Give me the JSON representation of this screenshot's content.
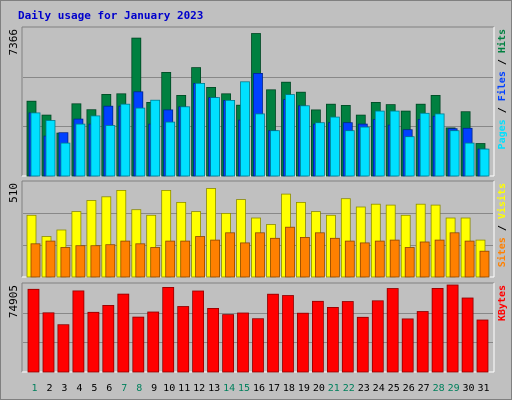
{
  "colors": {
    "background": "#c0c0c0",
    "hits": "#008040",
    "files": "#0040ff",
    "pages": "#00e0ff",
    "visits": "#ffff00",
    "sites": "#ff8000",
    "kbytes": "#ff0000",
    "weekday_label": "#000000",
    "weekend_label": "#00805c",
    "title": "#0000cc"
  },
  "chart_data": {
    "type": "bar",
    "title": "Daily usage for January 2023",
    "categories": [
      "1",
      "2",
      "3",
      "4",
      "5",
      "6",
      "7",
      "8",
      "9",
      "10",
      "11",
      "12",
      "13",
      "14",
      "15",
      "16",
      "17",
      "18",
      "19",
      "20",
      "21",
      "22",
      "23",
      "24",
      "25",
      "26",
      "27",
      "28",
      "29",
      "30",
      "31"
    ],
    "weekend_days": [
      1,
      7,
      8,
      14,
      15,
      21,
      22,
      28,
      29
    ],
    "panels": [
      {
        "name": "hits-files-pages",
        "ymax_label": "7366",
        "ylim": [
          0,
          7366
        ],
        "right_labels": [
          "Pages",
          " / ",
          "Files",
          " / ",
          "Hits"
        ],
        "series": [
          {
            "name": "Hits",
            "values": [
              3750,
              3050,
              2150,
              3620,
              3320,
              4090,
              4120,
              6910,
              3690,
              5190,
              4040,
              5430,
              4440,
              4120,
              3550,
              7140,
              4320,
              4700,
              4200,
              3310,
              3600,
              3540,
              3050,
              3690,
              3580,
              3250,
              3600,
              4040,
              2410,
              3220,
              1630
            ]
          },
          {
            "name": "Files",
            "values": [
              3160,
              2000,
              2170,
              2850,
              2600,
              3500,
              3500,
              4220,
              2600,
              3310,
              3470,
              4640,
              3930,
              3790,
              2800,
              5140,
              2270,
              3830,
              3520,
              2600,
              2670,
              2670,
              2600,
              2830,
              2550,
              2320,
              2830,
              2990,
              2370,
              2390,
              1350
            ]
          },
          {
            "name": "Pages",
            "values": [
              3160,
              2780,
              1650,
              2600,
              3010,
              2530,
              3600,
              3400,
              3800,
              2700,
              3470,
              4640,
              3930,
              3790,
              4720,
              3110,
              2270,
              4080,
              3520,
              2670,
              2950,
              2270,
              2450,
              3250,
              3250,
              1970,
              3140,
              3110,
              2270,
              1650,
              1350
            ]
          }
        ]
      },
      {
        "name": "visits-sites",
        "ymax_label": "510",
        "ylim": [
          0,
          510
        ],
        "right_labels": [
          "Sites",
          " / ",
          "Visits"
        ],
        "series": [
          {
            "name": "Visits",
            "values": [
              335,
              220,
              255,
              355,
              415,
              435,
              470,
              365,
              335,
              470,
              405,
              355,
              480,
              345,
              420,
              320,
              285,
              450,
              405,
              355,
              335,
              425,
              380,
              395,
              390,
              335,
              395,
              390,
              320,
              320,
              200
            ]
          },
          {
            "name": "Sites",
            "values": [
              180,
              195,
              160,
              170,
              170,
              175,
              195,
              180,
              160,
              195,
              195,
              220,
              200,
              240,
              185,
              240,
              210,
              270,
              215,
              240,
              210,
              195,
              185,
              195,
              200,
              160,
              190,
              200,
              240,
              195,
              140
            ]
          }
        ]
      },
      {
        "name": "kbytes",
        "ymax_label": "74905",
        "ylim": [
          0,
          74905
        ],
        "right_labels": [
          "KBytes"
        ],
        "series": [
          {
            "name": "KBytes",
            "values": [
              71200,
              51000,
              40700,
              69800,
              51400,
              57300,
              67100,
              47300,
              51700,
              72800,
              56400,
              69700,
              54800,
              49400,
              50800,
              45900,
              67000,
              65900,
              50600,
              60900,
              55600,
              60700,
              47100,
              61300,
              71900,
              45700,
              52100,
              72000,
              74905,
              63700,
              44800
            ]
          }
        ]
      }
    ]
  }
}
